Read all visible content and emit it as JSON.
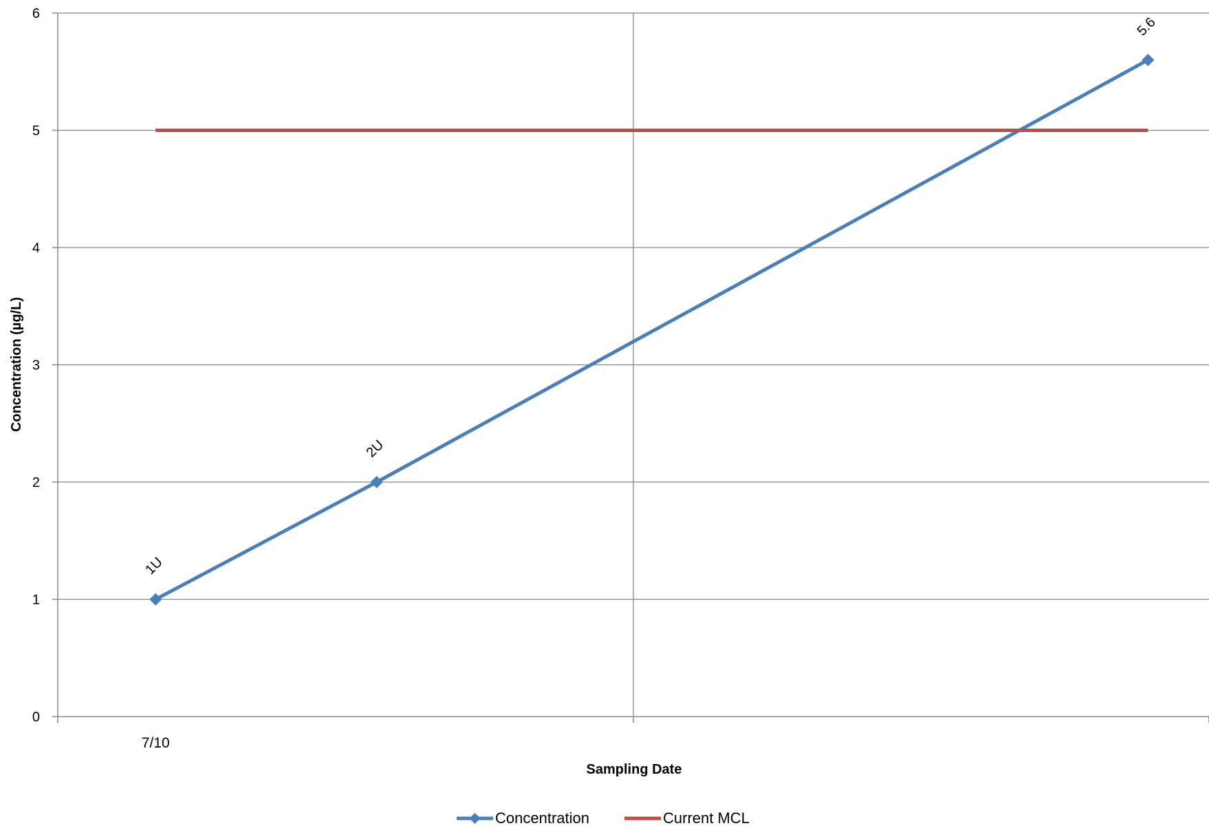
{
  "chart_data": {
    "type": "line",
    "title": "",
    "xlabel": "Sampling Date",
    "ylabel": "Concentration (µg/L)",
    "ylim": [
      0,
      6
    ],
    "y_ticks": [
      "0",
      "1",
      "2",
      "3",
      "4",
      "5",
      "6"
    ],
    "x_tick_labels": [
      "7/10"
    ],
    "grid": true,
    "legend_position": "bottom",
    "series": [
      {
        "name": "Concentration",
        "color": "#4a7ebb",
        "marker": "diamond",
        "x": [
          0.085,
          0.277,
          0.947
        ],
        "values": [
          1,
          2,
          5.6
        ],
        "point_labels": [
          "1U",
          "2U",
          "5.6"
        ]
      },
      {
        "name": "Current MCL",
        "color": "#be4b48",
        "marker": "none",
        "x": [
          0.085,
          0.947
        ],
        "values": [
          5,
          5
        ]
      }
    ]
  }
}
